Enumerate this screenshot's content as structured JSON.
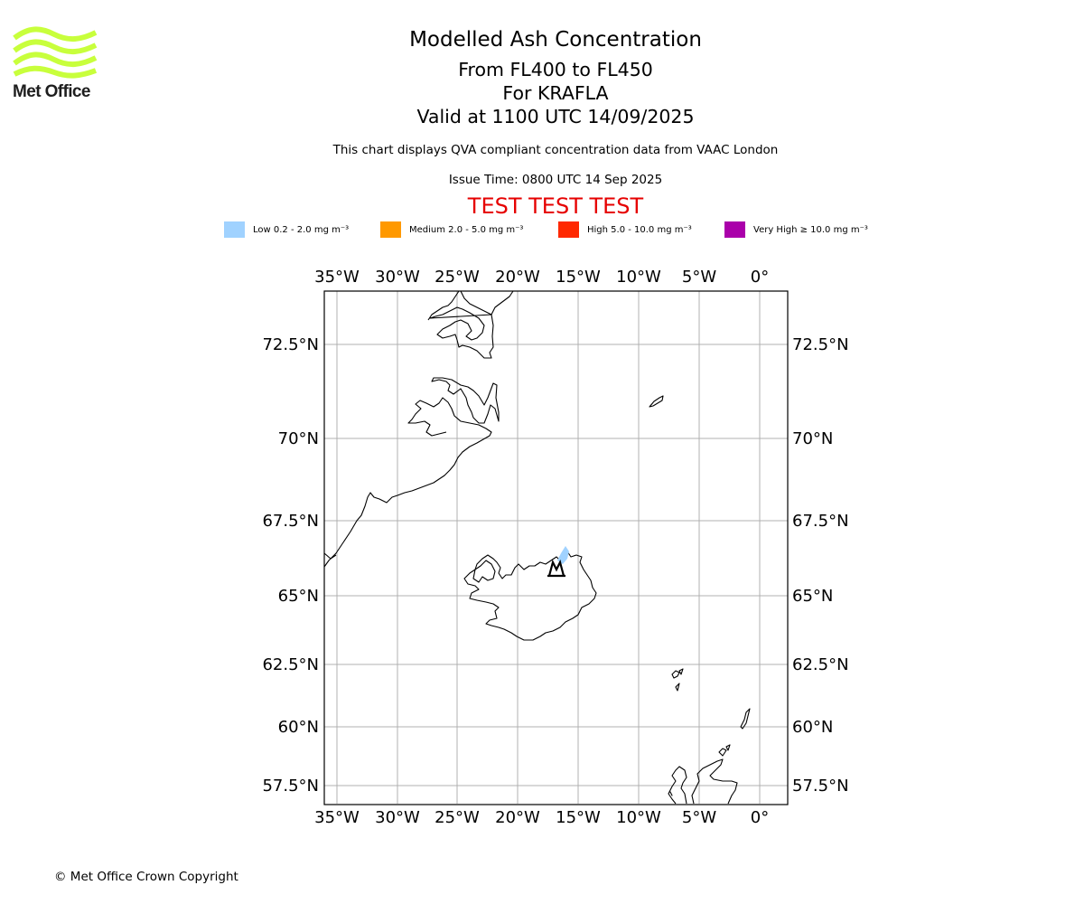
{
  "branding": {
    "logo_text": "Met Office",
    "logo_color": "#c8ff3c"
  },
  "header": {
    "title": "Modelled Ash Concentration",
    "line1": "From FL400 to FL450",
    "line2": "For KRAFLA",
    "line3": "Valid at 1100 UTC 14/09/2025",
    "note": "This chart displays QVA compliant concentration data from VAAC London",
    "issue_time": "Issue Time: 0800 UTC 14 Sep 2025",
    "test_banner": "TEST TEST TEST",
    "test_color": "#e60000"
  },
  "legend": {
    "items": [
      {
        "label": "Low 0.2 - 2.0 mg m⁻³",
        "color": "#a0d2ff"
      },
      {
        "label": "Medium 2.0 - 5.0 mg m⁻³",
        "color": "#ff9900"
      },
      {
        "label": "High 5.0 - 10.0 mg m⁻³",
        "color": "#ff2800"
      },
      {
        "label": "Very High ≥ 10.0 mg m⁻³",
        "color": "#aa00aa"
      }
    ]
  },
  "map": {
    "lon_ticks": [
      "35°W",
      "30°W",
      "25°W",
      "20°W",
      "15°W",
      "10°W",
      "5°W",
      "0°"
    ],
    "lat_ticks": [
      "72.5°N",
      "70°N",
      "67.5°N",
      "65°N",
      "62.5°N",
      "60°N",
      "57.5°N"
    ],
    "volcano": "KRAFLA",
    "ash_level": "Low",
    "grid": true
  },
  "footer": {
    "copyright": "© Met Office Crown Copyright"
  }
}
